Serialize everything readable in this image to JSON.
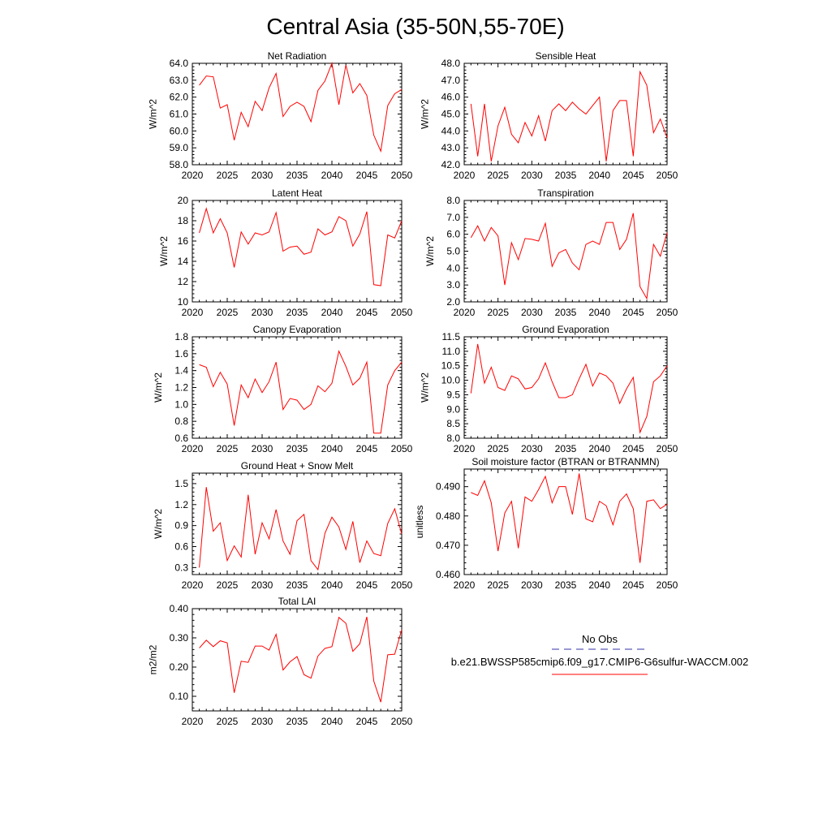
{
  "title": "Central Asia (35-50N,55-70E)",
  "chart_data": [
    {
      "type": "line",
      "title": "Net Radiation",
      "ylabel": "W/m^2",
      "ylim": [
        58.0,
        64.0
      ],
      "xlim": [
        2020,
        2050
      ],
      "xticks": [
        2020,
        2025,
        2030,
        2035,
        2040,
        2045,
        2050
      ],
      "yticks": [
        58.0,
        59.0,
        60.0,
        61.0,
        62.0,
        63.0,
        64.0
      ],
      "ytick_labels": [
        "58.0",
        "59.0",
        "60.0",
        "61.0",
        "62.0",
        "63.0",
        "64.0"
      ],
      "series": [
        {
          "color": "#ff0000",
          "x": [
            2021,
            2022,
            2023,
            2024,
            2025,
            2026,
            2027,
            2028,
            2029,
            2030,
            2031,
            2032,
            2033,
            2034,
            2035,
            2036,
            2037,
            2038,
            2039,
            2040,
            2041,
            2042,
            2043,
            2044,
            2045,
            2046,
            2047,
            2048,
            2049,
            2050
          ],
          "values": [
            62.7,
            63.25,
            63.2,
            61.35,
            61.55,
            59.45,
            61.1,
            60.25,
            61.75,
            61.2,
            62.55,
            63.4,
            60.85,
            61.45,
            61.7,
            61.45,
            60.55,
            62.4,
            62.95,
            64.0,
            61.55,
            63.9,
            62.25,
            62.8,
            62.1,
            59.75,
            58.8,
            61.5,
            62.2,
            62.45
          ]
        }
      ]
    },
    {
      "type": "line",
      "title": "Sensible Heat",
      "ylabel": "W/m^2",
      "ylim": [
        42.0,
        48.0
      ],
      "xlim": [
        2020,
        2050
      ],
      "xticks": [
        2020,
        2025,
        2030,
        2035,
        2040,
        2045,
        2050
      ],
      "yticks": [
        42.0,
        43.0,
        44.0,
        45.0,
        46.0,
        47.0,
        48.0
      ],
      "ytick_labels": [
        "42.0",
        "43.0",
        "44.0",
        "45.0",
        "46.0",
        "47.0",
        "48.0"
      ],
      "series": [
        {
          "color": "#ff0000",
          "x": [
            2021,
            2022,
            2023,
            2024,
            2025,
            2026,
            2027,
            2028,
            2029,
            2030,
            2031,
            2032,
            2033,
            2034,
            2035,
            2036,
            2037,
            2038,
            2039,
            2040,
            2041,
            2042,
            2043,
            2044,
            2045,
            2046,
            2047,
            2048,
            2049,
            2050
          ],
          "values": [
            45.6,
            42.5,
            45.6,
            42.2,
            44.3,
            45.4,
            43.8,
            43.3,
            44.5,
            43.7,
            44.9,
            43.4,
            45.2,
            45.6,
            45.2,
            45.7,
            45.3,
            45.0,
            45.5,
            46.0,
            42.2,
            45.2,
            45.8,
            45.8,
            42.5,
            47.5,
            46.7,
            43.9,
            44.7,
            43.6
          ]
        }
      ]
    },
    {
      "type": "line",
      "title": "Latent Heat",
      "ylabel": "W/m^2",
      "ylim": [
        10,
        20
      ],
      "xlim": [
        2020,
        2050
      ],
      "xticks": [
        2020,
        2025,
        2030,
        2035,
        2040,
        2045,
        2050
      ],
      "yticks": [
        10,
        12,
        14,
        16,
        18,
        20
      ],
      "ytick_labels": [
        "10",
        "12",
        "14",
        "16",
        "18",
        "20"
      ],
      "series": [
        {
          "color": "#ff0000",
          "x": [
            2021,
            2022,
            2023,
            2024,
            2025,
            2026,
            2027,
            2028,
            2029,
            2030,
            2031,
            2032,
            2033,
            2034,
            2035,
            2036,
            2037,
            2038,
            2039,
            2040,
            2041,
            2042,
            2043,
            2044,
            2045,
            2046,
            2047,
            2048,
            2049,
            2050
          ],
          "values": [
            16.8,
            19.2,
            16.8,
            18.2,
            16.8,
            13.4,
            16.9,
            15.7,
            16.8,
            16.6,
            16.9,
            18.8,
            15.0,
            15.4,
            15.5,
            14.7,
            14.9,
            17.2,
            16.6,
            16.9,
            18.4,
            18.0,
            15.5,
            16.7,
            18.9,
            11.7,
            11.6,
            16.6,
            16.3,
            18.0
          ]
        }
      ]
    },
    {
      "type": "line",
      "title": "Transpiration",
      "ylabel": "W/m^2",
      "ylim": [
        2.0,
        8.0
      ],
      "xlim": [
        2020,
        2050
      ],
      "xticks": [
        2020,
        2025,
        2030,
        2035,
        2040,
        2045,
        2050
      ],
      "yticks": [
        2.0,
        3.0,
        4.0,
        5.0,
        6.0,
        7.0,
        8.0
      ],
      "ytick_labels": [
        "2.0",
        "3.0",
        "4.0",
        "5.0",
        "6.0",
        "7.0",
        "8.0"
      ],
      "series": [
        {
          "color": "#ff0000",
          "x": [
            2021,
            2022,
            2023,
            2024,
            2025,
            2026,
            2027,
            2028,
            2029,
            2030,
            2031,
            2032,
            2033,
            2034,
            2035,
            2036,
            2037,
            2038,
            2039,
            2040,
            2041,
            2042,
            2043,
            2044,
            2045,
            2046,
            2047,
            2048,
            2049,
            2050
          ],
          "values": [
            5.8,
            6.5,
            5.6,
            6.4,
            5.9,
            3.0,
            5.5,
            4.5,
            5.75,
            5.7,
            5.6,
            6.65,
            4.1,
            4.9,
            5.1,
            4.3,
            3.9,
            5.4,
            5.6,
            5.4,
            6.7,
            6.7,
            5.1,
            5.7,
            7.25,
            2.9,
            2.2,
            5.4,
            4.7,
            6.1
          ]
        }
      ]
    },
    {
      "type": "line",
      "title": "Canopy Evaporation",
      "ylabel": "W/m^2",
      "ylim": [
        0.6,
        1.8
      ],
      "xlim": [
        2020,
        2050
      ],
      "xticks": [
        2020,
        2025,
        2030,
        2035,
        2040,
        2045,
        2050
      ],
      "yticks": [
        0.6,
        0.8,
        1.0,
        1.2,
        1.4,
        1.6,
        1.8
      ],
      "ytick_labels": [
        "0.6",
        "0.8",
        "1.0",
        "1.2",
        "1.4",
        "1.6",
        "1.8"
      ],
      "series": [
        {
          "color": "#ff0000",
          "x": [
            2021,
            2022,
            2023,
            2024,
            2025,
            2026,
            2027,
            2028,
            2029,
            2030,
            2031,
            2032,
            2033,
            2034,
            2035,
            2036,
            2037,
            2038,
            2039,
            2040,
            2041,
            2042,
            2043,
            2044,
            2045,
            2046,
            2047,
            2048,
            2049,
            2050
          ],
          "values": [
            1.47,
            1.44,
            1.21,
            1.38,
            1.24,
            0.75,
            1.23,
            1.08,
            1.3,
            1.14,
            1.27,
            1.5,
            0.94,
            1.07,
            1.05,
            0.94,
            1.0,
            1.22,
            1.15,
            1.25,
            1.63,
            1.45,
            1.23,
            1.31,
            1.5,
            0.66,
            0.66,
            1.23,
            1.4,
            1.5
          ]
        }
      ]
    },
    {
      "type": "line",
      "title": "Ground Evaporation",
      "ylabel": "W/m^2",
      "ylim": [
        8.0,
        11.5
      ],
      "xlim": [
        2020,
        2050
      ],
      "xticks": [
        2020,
        2025,
        2030,
        2035,
        2040,
        2045,
        2050
      ],
      "yticks": [
        8.0,
        8.5,
        9.0,
        9.5,
        10.0,
        10.5,
        11.0,
        11.5
      ],
      "ytick_labels": [
        "8.0",
        "8.5",
        "9.0",
        "9.5",
        "10.0",
        "10.5",
        "11.0",
        "11.5"
      ],
      "series": [
        {
          "color": "#ff0000",
          "x": [
            2021,
            2022,
            2023,
            2024,
            2025,
            2026,
            2027,
            2028,
            2029,
            2030,
            2031,
            2032,
            2033,
            2034,
            2035,
            2036,
            2037,
            2038,
            2039,
            2040,
            2041,
            2042,
            2043,
            2044,
            2045,
            2046,
            2047,
            2048,
            2049,
            2050
          ],
          "values": [
            9.55,
            11.25,
            9.9,
            10.45,
            9.75,
            9.65,
            10.15,
            10.05,
            9.7,
            9.75,
            10.05,
            10.6,
            9.95,
            9.4,
            9.4,
            9.5,
            10.05,
            10.55,
            9.8,
            10.25,
            10.15,
            9.9,
            9.2,
            9.7,
            10.1,
            8.2,
            8.75,
            9.95,
            10.15,
            10.5
          ]
        }
      ]
    },
    {
      "type": "line",
      "title": "Ground Heat + Snow Melt",
      "ylabel": "W/m^2",
      "ylim": [
        0.2,
        1.65
      ],
      "xlim": [
        2020,
        2050
      ],
      "xticks": [
        2020,
        2025,
        2030,
        2035,
        2040,
        2045,
        2050
      ],
      "yticks": [
        0.3,
        0.6,
        0.9,
        1.2,
        1.5
      ],
      "ytick_labels": [
        "0.3",
        "0.6",
        "0.9",
        "1.2",
        "1.5"
      ],
      "series": [
        {
          "color": "#ff0000",
          "x": [
            2021,
            2022,
            2023,
            2024,
            2025,
            2026,
            2027,
            2028,
            2029,
            2030,
            2031,
            2032,
            2033,
            2034,
            2035,
            2036,
            2037,
            2038,
            2039,
            2040,
            2041,
            2042,
            2043,
            2044,
            2045,
            2046,
            2047,
            2048,
            2049,
            2050
          ],
          "values": [
            0.3,
            1.45,
            0.82,
            0.94,
            0.4,
            0.61,
            0.45,
            1.34,
            0.49,
            0.94,
            0.71,
            1.13,
            0.68,
            0.49,
            0.97,
            1.06,
            0.4,
            0.27,
            0.79,
            1.02,
            0.88,
            0.56,
            0.96,
            0.37,
            0.68,
            0.5,
            0.47,
            0.93,
            1.14,
            0.78
          ]
        }
      ]
    },
    {
      "type": "line",
      "title": "Soil moisture factor (BTRAN or BTRANMN)",
      "ylabel": "unitless",
      "ylim": [
        0.46,
        0.496
      ],
      "xlim": [
        2020,
        2050
      ],
      "xticks": [
        2020,
        2025,
        2030,
        2035,
        2040,
        2045,
        2050
      ],
      "yticks": [
        0.46,
        0.47,
        0.48,
        0.49
      ],
      "ytick_labels": [
        "0.460",
        "0.470",
        "0.480",
        "0.490"
      ],
      "series": [
        {
          "color": "#ff0000",
          "x": [
            2021,
            2022,
            2023,
            2024,
            2025,
            2026,
            2027,
            2028,
            2029,
            2030,
            2031,
            2032,
            2033,
            2034,
            2035,
            2036,
            2037,
            2038,
            2039,
            2040,
            2041,
            2042,
            2043,
            2044,
            2045,
            2046,
            2047,
            2048,
            2049,
            2050
          ],
          "values": [
            0.488,
            0.487,
            0.492,
            0.4845,
            0.468,
            0.481,
            0.485,
            0.469,
            0.4865,
            0.485,
            0.489,
            0.4935,
            0.4845,
            0.49,
            0.49,
            0.4805,
            0.4945,
            0.479,
            0.478,
            0.485,
            0.4835,
            0.477,
            0.485,
            0.4875,
            0.4825,
            0.464,
            0.485,
            0.4855,
            0.4825,
            0.484
          ]
        }
      ]
    },
    {
      "type": "line",
      "title": "Total LAI",
      "ylabel": "m2/m2",
      "ylim": [
        0.05,
        0.4
      ],
      "xlim": [
        2020,
        2050
      ],
      "xticks": [
        2020,
        2025,
        2030,
        2035,
        2040,
        2045,
        2050
      ],
      "yticks": [
        0.1,
        0.2,
        0.3,
        0.4
      ],
      "ytick_labels": [
        "0.10",
        "0.20",
        "0.30",
        "0.40"
      ],
      "series": [
        {
          "color": "#ff0000",
          "x": [
            2021,
            2022,
            2023,
            2024,
            2025,
            2026,
            2027,
            2028,
            2029,
            2030,
            2031,
            2032,
            2033,
            2034,
            2035,
            2036,
            2037,
            2038,
            2039,
            2040,
            2041,
            2042,
            2043,
            2044,
            2045,
            2046,
            2047,
            2048,
            2049,
            2050
          ],
          "values": [
            0.265,
            0.292,
            0.27,
            0.29,
            0.283,
            0.112,
            0.22,
            0.216,
            0.272,
            0.272,
            0.258,
            0.312,
            0.19,
            0.218,
            0.236,
            0.174,
            0.162,
            0.238,
            0.264,
            0.27,
            0.37,
            0.35,
            0.254,
            0.28,
            0.372,
            0.152,
            0.08,
            0.242,
            0.244,
            0.328
          ]
        }
      ]
    }
  ],
  "legend": {
    "items": [
      {
        "label": "No Obs",
        "color": "#3333aa",
        "style": "dashed"
      },
      {
        "label": "b.e21.BWSSP585cmip6.f09_g17.CMIP6-G6sulfur-WACCM.002",
        "color": "#ff0000",
        "style": "solid"
      }
    ]
  }
}
